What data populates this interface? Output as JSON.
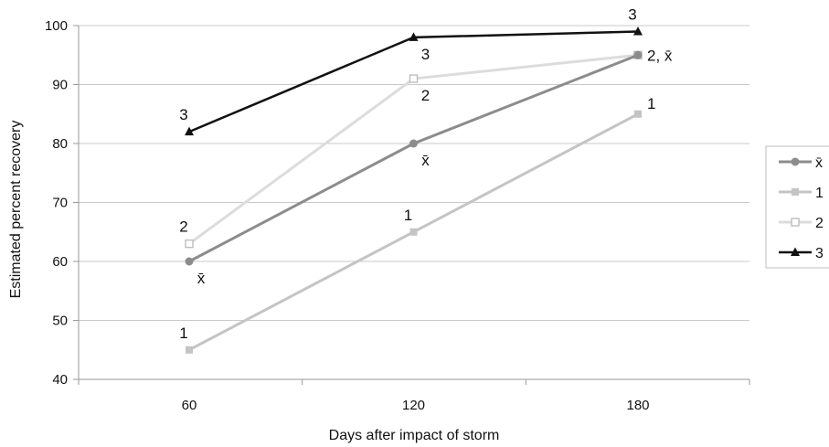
{
  "chart_data": {
    "type": "line",
    "title": "",
    "xlabel": "Days after impact of storm",
    "ylabel": "Estimated percent recovery",
    "categories": [
      "60",
      "120",
      "180"
    ],
    "ylim": [
      40,
      100
    ],
    "yticks": [
      "40",
      "50",
      "60",
      "70",
      "80",
      "90",
      "100"
    ],
    "grid": "horizontal",
    "legend_position": "right",
    "series": [
      {
        "name": "x̄",
        "values": [
          60,
          80,
          95
        ],
        "color": "#8c8c8c",
        "marker": "circle-filled",
        "width": 3
      },
      {
        "name": "1",
        "values": [
          45,
          65,
          85
        ],
        "color": "#c4c4c4",
        "marker": "square-filled",
        "width": 3
      },
      {
        "name": "2",
        "values": [
          63,
          91,
          95
        ],
        "color": "#dcdcdc",
        "marker": "square-open",
        "width": 3
      },
      {
        "name": "3",
        "values": [
          82,
          98,
          99
        ],
        "color": "#111111",
        "marker": "triangle-filled",
        "width": 2.5
      }
    ],
    "point_labels": [
      {
        "text": "3",
        "xi": 0,
        "y": 82,
        "pos": "above"
      },
      {
        "text": "2",
        "xi": 0,
        "y": 63,
        "pos": "above"
      },
      {
        "text": "x̄",
        "xi": 0,
        "y": 60,
        "pos": "below"
      },
      {
        "text": "1",
        "xi": 0,
        "y": 45,
        "pos": "above"
      },
      {
        "text": "3",
        "xi": 1,
        "y": 98,
        "pos": "below"
      },
      {
        "text": "2",
        "xi": 1,
        "y": 91,
        "pos": "below"
      },
      {
        "text": "x̄",
        "xi": 1,
        "y": 80,
        "pos": "below"
      },
      {
        "text": "1",
        "xi": 1,
        "y": 65,
        "pos": "above"
      },
      {
        "text": "3",
        "xi": 2,
        "y": 99,
        "pos": "above"
      },
      {
        "text": "2, x̄",
        "xi": 2,
        "y": 95,
        "pos": "right"
      },
      {
        "text": "1",
        "xi": 2,
        "y": 85,
        "pos": "above-right"
      }
    ]
  }
}
